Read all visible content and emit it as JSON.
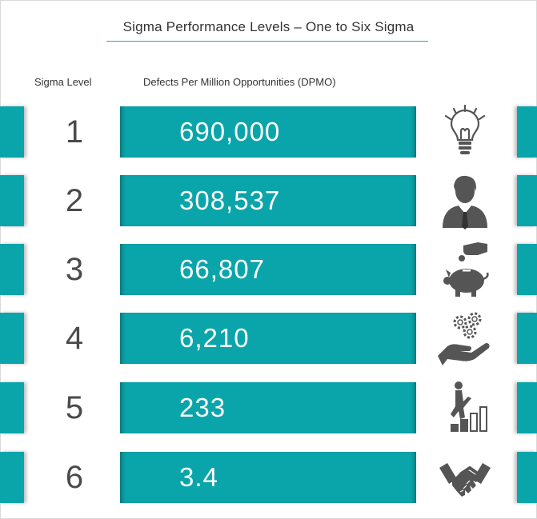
{
  "title": "Sigma Performance Levels – One to Six Sigma",
  "headers": {
    "level": "Sigma Level",
    "dpmo": "Defects Per Million Opportunities (DPMO)"
  },
  "rows": [
    {
      "level": "1",
      "dpmo": "690,000",
      "icon": "lightbulb-icon"
    },
    {
      "level": "2",
      "dpmo": "308,537",
      "icon": "businessman-icon"
    },
    {
      "level": "3",
      "dpmo": "66,807",
      "icon": "piggy-bank-icon"
    },
    {
      "level": "4",
      "dpmo": "6,210",
      "icon": "gears-hand-icon"
    },
    {
      "level": "5",
      "dpmo": "233",
      "icon": "climbing-steps-icon"
    },
    {
      "level": "6",
      "dpmo": "3.4",
      "icon": "handshake-icon"
    }
  ],
  "colors": {
    "accent": "#0aa5aa",
    "text": "#4a4a4a",
    "icon": "#555555"
  }
}
